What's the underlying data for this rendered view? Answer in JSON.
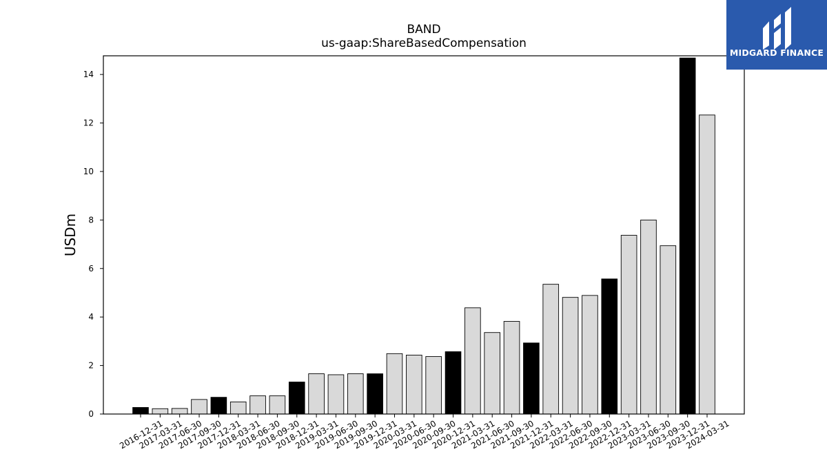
{
  "chart_data": {
    "type": "bar",
    "title": "BAND",
    "subtitle": "us-gaap:ShareBasedCompensation",
    "xlabel": "",
    "ylabel": "USDm",
    "ylim": [
      0,
      14.77
    ],
    "yticks": [
      0,
      2,
      4,
      6,
      8,
      10,
      12,
      14
    ],
    "categories": [
      "2016-12-31",
      "2017-03-31",
      "2017-06-30",
      "2017-09-30",
      "2017-12-31",
      "2018-03-31",
      "2018-06-30",
      "2018-09-30",
      "2018-12-31",
      "2019-03-31",
      "2019-06-30",
      "2019-09-30",
      "2019-12-31",
      "2020-03-31",
      "2020-06-30",
      "2020-09-30",
      "2020-12-31",
      "2021-03-31",
      "2021-06-30",
      "2021-09-30",
      "2021-12-31",
      "2022-03-31",
      "2022-06-30",
      "2022-09-30",
      "2022-12-31",
      "2023-03-31",
      "2023-06-30",
      "2023-09-30",
      "2023-12-31",
      "2024-03-31"
    ],
    "values": [
      0.27,
      0.22,
      0.23,
      0.6,
      0.69,
      0.5,
      0.75,
      0.75,
      1.32,
      1.66,
      1.62,
      1.66,
      1.66,
      2.49,
      2.43,
      2.37,
      2.57,
      4.38,
      3.36,
      3.82,
      2.93,
      5.35,
      4.81,
      4.89,
      5.57,
      7.37,
      8.0,
      6.94,
      14.68,
      12.33
    ],
    "fiscal_year_end_highlight": [
      true,
      false,
      false,
      false,
      true,
      false,
      false,
      false,
      true,
      false,
      false,
      false,
      true,
      false,
      false,
      false,
      true,
      false,
      false,
      false,
      true,
      false,
      false,
      false,
      true,
      false,
      false,
      false,
      true,
      false
    ],
    "colors": {
      "highlight": "#000000",
      "normal": "#d9d9d9",
      "edge": "#000000"
    },
    "grid": false,
    "legend": "none"
  },
  "logo": {
    "text": "MIDGARD FINANCE",
    "background": "#2a5aad",
    "icon": "midgard-logo-icon"
  }
}
